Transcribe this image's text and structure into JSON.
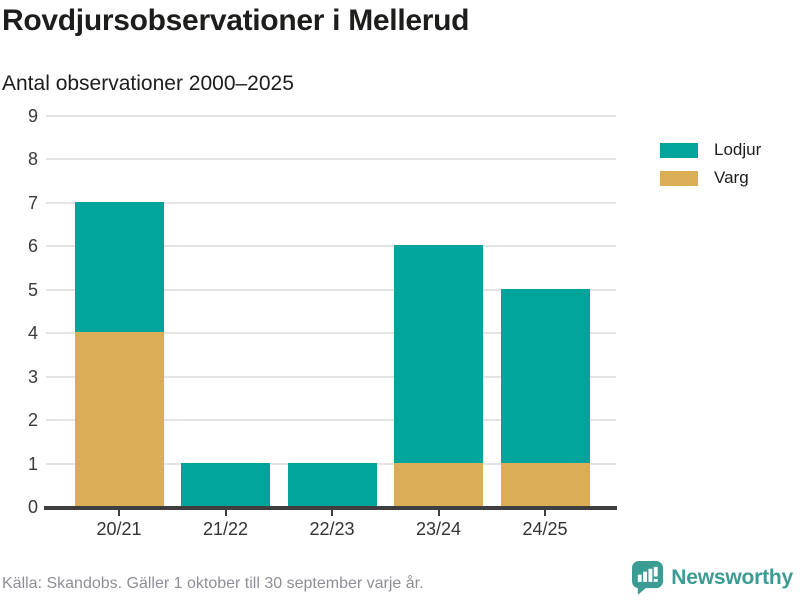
{
  "header": {
    "title": "Rovdjursobservationer i Mellerud",
    "subtitle": "Antal observationer 2000–2025"
  },
  "chart_data": {
    "type": "bar",
    "stacked": true,
    "title": "Rovdjursobservationer i Mellerud",
    "subtitle": "Antal observationer 2000–2025",
    "categories": [
      "20/21",
      "21/22",
      "22/23",
      "23/24",
      "24/25"
    ],
    "series": [
      {
        "name": "Lodjur",
        "color": "#00a49a",
        "values": [
          3,
          1,
          1,
          5,
          4
        ]
      },
      {
        "name": "Varg",
        "color": "#dcad57",
        "values": [
          4,
          0,
          0,
          1,
          1
        ]
      }
    ],
    "stack_bottom_to_top": [
      "Varg",
      "Lodjur"
    ],
    "totals": [
      7,
      1,
      1,
      6,
      5
    ],
    "xlabel": "",
    "ylabel": "",
    "ylim": [
      0,
      9
    ],
    "yticks": [
      0,
      1,
      2,
      3,
      4,
      5,
      6,
      7,
      8,
      9
    ],
    "grid": true,
    "legend_position": "right"
  },
  "legend": {
    "items": [
      {
        "label": "Lodjur",
        "color": "#00a49a"
      },
      {
        "label": "Varg",
        "color": "#dcad57"
      }
    ]
  },
  "footer": {
    "source": "Källa: Skandobs. Gäller 1 oktober till 30 september varje år.",
    "brand": "Newsworthy"
  },
  "colors": {
    "lodjur": "#00a49a",
    "varg": "#dcad57",
    "gridline": "#e4e4e4",
    "axis": "#3e3e3e",
    "text_dark": "#1d1d1b",
    "text_axis": "#3a3a3a",
    "text_muted": "#8e8e96",
    "brand_teal": "#3b9c94"
  }
}
